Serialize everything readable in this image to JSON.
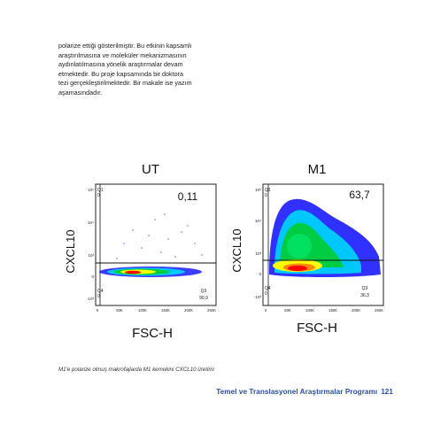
{
  "paragraph": {
    "lines": [
      "polarize ettiği gösterilmiştir. Bu etkinin kapsamlı",
      "araştırılmasına ve moleküler mekanizmasının",
      "aydınlatılmasına yönelik araştırmalar devam",
      "etmektedir. Bu proje kapsamında bir doktora",
      "tezi gerçekleştirilmektedir. Bir makale ise yazım",
      "aşamasındadır."
    ]
  },
  "figure": {
    "panels": [
      {
        "title": "UT",
        "ylabel": "CXCL10",
        "xlabel": "FSC-H",
        "big_percent": "0,11",
        "q1_label": "Q1",
        "q1_value": "0",
        "q3_label": "Q3",
        "q3_value": "99,9",
        "q4_label": "Q4",
        "q4_value": "0"
      },
      {
        "title": "M1",
        "ylabel": "CXCL10",
        "xlabel": "FSC-H",
        "big_percent": "63,7",
        "q1_label": "Q1",
        "q1_value": "0",
        "q3_label": "Q3",
        "q3_value": "36,3",
        "q4_label": "Q4",
        "q4_value": "0"
      }
    ],
    "x_ticks": [
      "0",
      "50K",
      "100K",
      "150K",
      "200K",
      "250K"
    ],
    "y_ticks": [
      "10⁵",
      "10⁴",
      "10³",
      "0",
      "-10³"
    ],
    "colors": {
      "high": "#ff0000",
      "mid": "#ffff00",
      "low": "#00cc44",
      "sparse": "#1a1aff"
    }
  },
  "caption": "M1'e polarize olmuş makrofajlarda M1 kemokini CXCL10 üretimi",
  "footer": {
    "program": "Temel ve Translasyonel Araştırmalar Programı",
    "page_number": "121"
  }
}
